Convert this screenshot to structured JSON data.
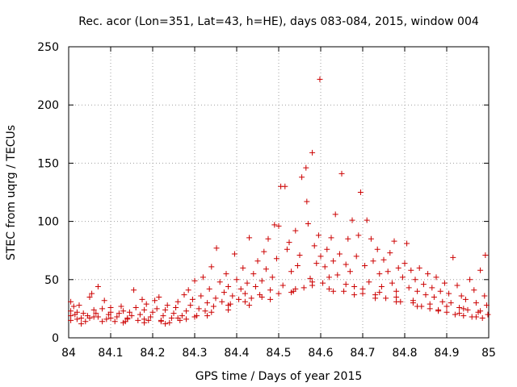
{
  "chart_data": {
    "type": "scatter",
    "title": "Rec. acor (Lon=351, Lat=43, h=HE), days 083-084, 2015, window 004",
    "xlabel": "GPS time / Days of year 2015",
    "ylabel": "STEC from uqrg / TECUs",
    "xlim": [
      84,
      85
    ],
    "ylim": [
      0,
      250
    ],
    "xticks": [
      "84",
      "84.1",
      "84.2",
      "84.3",
      "84.4",
      "84.5",
      "84.6",
      "84.7",
      "84.8",
      "84.9",
      "85"
    ],
    "yticks": [
      "0",
      "50",
      "100",
      "150",
      "200",
      "250"
    ],
    "grid": true,
    "marker": "+",
    "color": "#cc0000",
    "points": [
      [
        84.005,
        15
      ],
      [
        84.005,
        19
      ],
      [
        84.005,
        23
      ],
      [
        84.005,
        31
      ],
      [
        84.012,
        27
      ],
      [
        84.015,
        20
      ],
      [
        84.02,
        16
      ],
      [
        84.025,
        28
      ],
      [
        84.03,
        17
      ],
      [
        84.035,
        21
      ],
      [
        84.04,
        14
      ],
      [
        84.045,
        19
      ],
      [
        84.05,
        17
      ],
      [
        84.05,
        35
      ],
      [
        84.055,
        38
      ],
      [
        84.06,
        24
      ],
      [
        84.065,
        21
      ],
      [
        84.07,
        18
      ],
      [
        84.07,
        44
      ],
      [
        84.08,
        25
      ],
      [
        84.085,
        32
      ],
      [
        84.09,
        16
      ],
      [
        84.095,
        20
      ],
      [
        84.1,
        22
      ],
      [
        84.1,
        26
      ],
      [
        84.11,
        14
      ],
      [
        84.115,
        18
      ],
      [
        84.12,
        21
      ],
      [
        84.125,
        27
      ],
      [
        84.13,
        23
      ],
      [
        84.135,
        14
      ],
      [
        84.14,
        17
      ],
      [
        84.145,
        22
      ],
      [
        84.15,
        19
      ],
      [
        84.155,
        41
      ],
      [
        84.16,
        26
      ],
      [
        84.165,
        15
      ],
      [
        84.17,
        20
      ],
      [
        84.175,
        33
      ],
      [
        84.18,
        24
      ],
      [
        84.185,
        29
      ],
      [
        84.19,
        15
      ],
      [
        84.195,
        18
      ],
      [
        84.2,
        22
      ],
      [
        84.205,
        32
      ],
      [
        84.21,
        25
      ],
      [
        84.215,
        35
      ],
      [
        84.22,
        14
      ],
      [
        84.225,
        19
      ],
      [
        84.23,
        24
      ],
      [
        84.235,
        28
      ],
      [
        84.24,
        13
      ],
      [
        84.245,
        17
      ],
      [
        84.25,
        21
      ],
      [
        84.255,
        26
      ],
      [
        84.26,
        31
      ],
      [
        84.265,
        15
      ],
      [
        84.27,
        19
      ],
      [
        84.275,
        37
      ],
      [
        84.28,
        23
      ],
      [
        84.285,
        41
      ],
      [
        84.29,
        28
      ],
      [
        84.295,
        33
      ],
      [
        84.3,
        49
      ],
      [
        84.305,
        19
      ],
      [
        84.31,
        25
      ],
      [
        84.315,
        36
      ],
      [
        84.32,
        52
      ],
      [
        84.325,
        23
      ],
      [
        84.33,
        30
      ],
      [
        84.335,
        42
      ],
      [
        84.34,
        61
      ],
      [
        84.345,
        27
      ],
      [
        84.35,
        34
      ],
      [
        84.352,
        77
      ],
      [
        84.36,
        48
      ],
      [
        84.365,
        31
      ],
      [
        84.37,
        39
      ],
      [
        84.375,
        55
      ],
      [
        84.38,
        44
      ],
      [
        84.385,
        29
      ],
      [
        84.39,
        36
      ],
      [
        84.395,
        72
      ],
      [
        84.4,
        50
      ],
      [
        84.405,
        33
      ],
      [
        84.41,
        42
      ],
      [
        84.415,
        60
      ],
      [
        84.42,
        38
      ],
      [
        84.425,
        47
      ],
      [
        84.43,
        86
      ],
      [
        84.435,
        34
      ],
      [
        84.44,
        55
      ],
      [
        84.445,
        44
      ],
      [
        84.45,
        66
      ],
      [
        84.455,
        37
      ],
      [
        84.46,
        49
      ],
      [
        84.465,
        74
      ],
      [
        84.47,
        59
      ],
      [
        84.475,
        85
      ],
      [
        84.48,
        41
      ],
      [
        84.485,
        52
      ],
      [
        84.49,
        97
      ],
      [
        84.495,
        68
      ],
      [
        84.5,
        96
      ],
      [
        84.505,
        130
      ],
      [
        84.51,
        45
      ],
      [
        84.515,
        130
      ],
      [
        84.52,
        76
      ],
      [
        84.525,
        82
      ],
      [
        84.53,
        57
      ],
      [
        84.535,
        40
      ],
      [
        84.54,
        92
      ],
      [
        84.545,
        62
      ],
      [
        84.55,
        71
      ],
      [
        84.555,
        138
      ],
      [
        84.56,
        43
      ],
      [
        84.565,
        146
      ],
      [
        84.567,
        117
      ],
      [
        84.57,
        98
      ],
      [
        84.575,
        51
      ],
      [
        84.58,
        159
      ],
      [
        84.585,
        79
      ],
      [
        84.59,
        64
      ],
      [
        84.595,
        88
      ],
      [
        84.598,
        222
      ],
      [
        84.6,
        70
      ],
      [
        84.605,
        47
      ],
      [
        84.61,
        61
      ],
      [
        84.615,
        76
      ],
      [
        84.62,
        42
      ],
      [
        84.625,
        86
      ],
      [
        84.63,
        66
      ],
      [
        84.635,
        106
      ],
      [
        84.64,
        54
      ],
      [
        84.645,
        72
      ],
      [
        84.65,
        141
      ],
      [
        84.655,
        40
      ],
      [
        84.66,
        63
      ],
      [
        84.665,
        85
      ],
      [
        84.67,
        57
      ],
      [
        84.675,
        101
      ],
      [
        84.68,
        44
      ],
      [
        84.685,
        70
      ],
      [
        84.69,
        88
      ],
      [
        84.695,
        125
      ],
      [
        84.7,
        38
      ],
      [
        84.705,
        62
      ],
      [
        84.71,
        101
      ],
      [
        84.715,
        48
      ],
      [
        84.72,
        85
      ],
      [
        84.725,
        66
      ],
      [
        84.73,
        37
      ],
      [
        84.735,
        76
      ],
      [
        84.74,
        55
      ],
      [
        84.745,
        44
      ],
      [
        84.75,
        67
      ],
      [
        84.755,
        34
      ],
      [
        84.76,
        57
      ],
      [
        84.765,
        73
      ],
      [
        84.77,
        47
      ],
      [
        84.775,
        83
      ],
      [
        84.78,
        40
      ],
      [
        84.785,
        60
      ],
      [
        84.79,
        31
      ],
      [
        84.795,
        52
      ],
      [
        84.8,
        64
      ],
      [
        84.805,
        81
      ],
      [
        84.81,
        43
      ],
      [
        84.815,
        58
      ],
      [
        84.82,
        30
      ],
      [
        84.825,
        50
      ],
      [
        84.83,
        40
      ],
      [
        84.835,
        60
      ],
      [
        84.84,
        27
      ],
      [
        84.845,
        46
      ],
      [
        84.85,
        37
      ],
      [
        84.855,
        55
      ],
      [
        84.86,
        25
      ],
      [
        84.865,
        43
      ],
      [
        84.87,
        35
      ],
      [
        84.875,
        52
      ],
      [
        84.88,
        23
      ],
      [
        84.885,
        40
      ],
      [
        84.89,
        31
      ],
      [
        84.895,
        47
      ],
      [
        84.9,
        22
      ],
      [
        84.905,
        38
      ],
      [
        84.91,
        30
      ],
      [
        84.915,
        69
      ],
      [
        84.92,
        20
      ],
      [
        84.925,
        45
      ],
      [
        84.93,
        26
      ],
      [
        84.935,
        36
      ],
      [
        84.94,
        19
      ],
      [
        84.945,
        33
      ],
      [
        84.95,
        24
      ],
      [
        84.955,
        50
      ],
      [
        84.96,
        18
      ],
      [
        84.965,
        41
      ],
      [
        84.97,
        30
      ],
      [
        84.975,
        22
      ],
      [
        84.98,
        58
      ],
      [
        84.985,
        17
      ],
      [
        84.99,
        36
      ],
      [
        84.992,
        71
      ],
      [
        84.995,
        28
      ],
      [
        84.998,
        20
      ],
      [
        84.02,
        22
      ],
      [
        84.06,
        18
      ],
      [
        84.1,
        17
      ],
      [
        84.14,
        16
      ],
      [
        84.18,
        16
      ],
      [
        84.22,
        15
      ],
      [
        84.26,
        17
      ],
      [
        84.3,
        18
      ],
      [
        84.34,
        22
      ],
      [
        84.38,
        28
      ],
      [
        84.42,
        31
      ],
      [
        84.46,
        35
      ],
      [
        84.5,
        38
      ],
      [
        84.54,
        42
      ],
      [
        84.58,
        48
      ],
      [
        84.62,
        52
      ],
      [
        84.66,
        46
      ],
      [
        84.7,
        42
      ],
      [
        84.74,
        39
      ],
      [
        84.78,
        35
      ],
      [
        84.82,
        32
      ],
      [
        84.86,
        29
      ],
      [
        84.9,
        27
      ],
      [
        84.94,
        25
      ],
      [
        84.98,
        23
      ],
      [
        84.03,
        12
      ],
      [
        84.08,
        14
      ],
      [
        84.13,
        13
      ],
      [
        84.18,
        13
      ],
      [
        84.23,
        12
      ],
      [
        84.28,
        16
      ],
      [
        84.33,
        19
      ],
      [
        84.38,
        24
      ],
      [
        84.43,
        28
      ],
      [
        84.48,
        33
      ],
      [
        84.53,
        39
      ],
      [
        84.58,
        45
      ],
      [
        84.63,
        40
      ],
      [
        84.68,
        37
      ],
      [
        84.73,
        34
      ],
      [
        84.78,
        31
      ],
      [
        84.83,
        27
      ],
      [
        84.88,
        24
      ],
      [
        84.93,
        21
      ],
      [
        84.97,
        18
      ]
    ]
  }
}
